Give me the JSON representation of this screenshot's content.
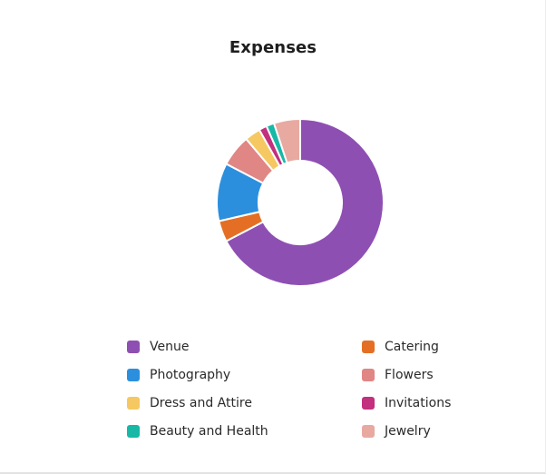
{
  "chart_data": {
    "type": "pie",
    "variant": "donut",
    "title": "Expenses",
    "categories": [
      "Venue",
      "Catering",
      "Photography",
      "Flowers",
      "Dress and Attire",
      "Invitations",
      "Beauty and Health",
      "Jewelry"
    ],
    "values": [
      66,
      4,
      11,
      6,
      3,
      1.5,
      1.5,
      5
    ],
    "unit": "percent (estimated)",
    "colors": [
      "#8e4fb3",
      "#e46f24",
      "#2b8fde",
      "#e08684",
      "#f5c862",
      "#c2307e",
      "#17b8a6",
      "#e8a9a1"
    ],
    "legend_position": "bottom",
    "legend_columns": 2,
    "start_angle": "12 o'clock",
    "direction": "clockwise"
  }
}
